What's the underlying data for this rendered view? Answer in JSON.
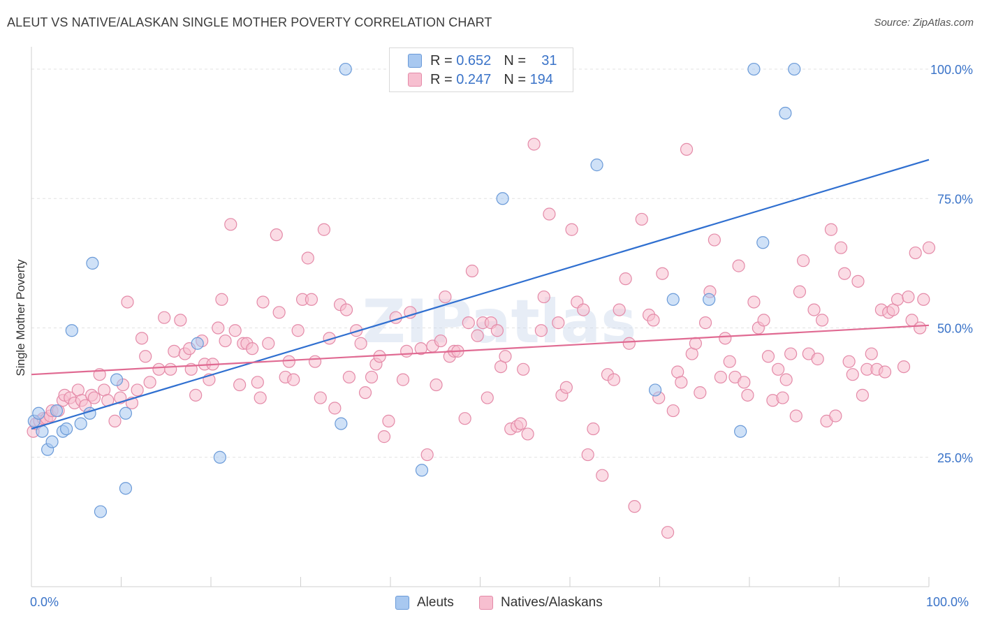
{
  "title": "ALEUT VS NATIVE/ALASKAN SINGLE MOTHER POVERTY CORRELATION CHART",
  "source": "Source: ZipAtlas.com",
  "watermark": "ZIPatlas",
  "legend": {
    "rows": [
      {
        "r_label": "R =",
        "r_value": "0.652",
        "n_label": "N =",
        "n_value": "31",
        "color": "#a8c8f0",
        "border": "#6a9ad8"
      },
      {
        "r_label": "R =",
        "r_value": "0.247",
        "n_label": "N =",
        "n_value": "194",
        "color": "#f7bfd0",
        "border": "#e48aa8"
      }
    ]
  },
  "bottom_legend": [
    {
      "label": "Aleuts",
      "color": "#a8c8f0",
      "border": "#6a9ad8"
    },
    {
      "label": "Natives/Alaskans",
      "color": "#f7bfd0",
      "border": "#e48aa8"
    }
  ],
  "chart_data": {
    "type": "scatter",
    "xlabel": "",
    "ylabel": "Single Mother Poverty",
    "xlim": [
      0,
      100
    ],
    "ylim": [
      0,
      105
    ],
    "x_tick_labels": [
      "0.0%",
      "100.0%"
    ],
    "y_ticks": [
      25,
      50,
      75,
      100
    ],
    "y_tick_labels": [
      "25.0%",
      "50.0%",
      "75.0%",
      "100.0%"
    ],
    "grid": true,
    "legend_position": "top-center",
    "series": [
      {
        "name": "Aleuts",
        "color": "#a8c8f0",
        "edge": "#6a9ad8",
        "trend_color": "#2f6fd0",
        "trend": [
          [
            0,
            30.5
          ],
          [
            100,
            82.5
          ]
        ],
        "points": [
          [
            0.3,
            32
          ],
          [
            0.8,
            33.5
          ],
          [
            1.2,
            30
          ],
          [
            1.8,
            26.5
          ],
          [
            2.3,
            28
          ],
          [
            2.8,
            34
          ],
          [
            3.5,
            30
          ],
          [
            3.9,
            30.5
          ],
          [
            5.5,
            31.5
          ],
          [
            6.5,
            33.5
          ],
          [
            4.5,
            49.5
          ],
          [
            6.8,
            62.5
          ],
          [
            7.7,
            14.5
          ],
          [
            9.5,
            40
          ],
          [
            10.5,
            33.5
          ],
          [
            10.5,
            19
          ],
          [
            18.5,
            47
          ],
          [
            21,
            25
          ],
          [
            34.5,
            31.5
          ],
          [
            35,
            100
          ],
          [
            43.5,
            22.5
          ],
          [
            52.5,
            75
          ],
          [
            63,
            81.5
          ],
          [
            69.5,
            38
          ],
          [
            71.5,
            55.5
          ],
          [
            75.5,
            55.5
          ],
          [
            79,
            30
          ],
          [
            80.5,
            100
          ],
          [
            81.5,
            66.5
          ],
          [
            84,
            91.5
          ],
          [
            85,
            100
          ]
        ]
      },
      {
        "name": "Natives/Alaskans",
        "color": "#f7bfd0",
        "edge": "#e48aa8",
        "trend_color": "#e06a92",
        "trend": [
          [
            0,
            41
          ],
          [
            100,
            50.5
          ]
        ],
        "points": [
          [
            0.2,
            30
          ],
          [
            0.5,
            31.5
          ],
          [
            0.9,
            32
          ],
          [
            1.3,
            32.5
          ],
          [
            1.7,
            32.5
          ],
          [
            2.1,
            33
          ],
          [
            2.3,
            34
          ],
          [
            3,
            34
          ],
          [
            3.5,
            36
          ],
          [
            3.7,
            37
          ],
          [
            4.3,
            36.5
          ],
          [
            4.8,
            35.5
          ],
          [
            5.2,
            38
          ],
          [
            5.6,
            36
          ],
          [
            6,
            35
          ],
          [
            6.7,
            37
          ],
          [
            7,
            36.5
          ],
          [
            7.6,
            41
          ],
          [
            8.1,
            38
          ],
          [
            8.5,
            36
          ],
          [
            9.3,
            32
          ],
          [
            9.9,
            36.5
          ],
          [
            10.2,
            39
          ],
          [
            10.7,
            55
          ],
          [
            11.2,
            35.5
          ],
          [
            11.8,
            38
          ],
          [
            12.3,
            48
          ],
          [
            12.7,
            44.5
          ],
          [
            13.2,
            39.5
          ],
          [
            14.2,
            42
          ],
          [
            14.8,
            52
          ],
          [
            15.5,
            42
          ],
          [
            15.9,
            45.5
          ],
          [
            16.6,
            51.5
          ],
          [
            17.1,
            45
          ],
          [
            17.6,
            46
          ],
          [
            17.8,
            42
          ],
          [
            18.3,
            37
          ],
          [
            19,
            47.5
          ],
          [
            19.3,
            43
          ],
          [
            19.8,
            40
          ],
          [
            20.2,
            43
          ],
          [
            20.8,
            50
          ],
          [
            21.2,
            55.5
          ],
          [
            21.6,
            47.5
          ],
          [
            22.2,
            70
          ],
          [
            22.7,
            49.5
          ],
          [
            23.2,
            39
          ],
          [
            23.6,
            47
          ],
          [
            24,
            47
          ],
          [
            24.6,
            46
          ],
          [
            25.2,
            39.5
          ],
          [
            25.5,
            36.5
          ],
          [
            25.8,
            55
          ],
          [
            26.4,
            47
          ],
          [
            27.3,
            68
          ],
          [
            27.6,
            53
          ],
          [
            28.3,
            40.5
          ],
          [
            28.7,
            43.5
          ],
          [
            29.2,
            40
          ],
          [
            29.7,
            49.5
          ],
          [
            30.2,
            55.5
          ],
          [
            30.8,
            63.5
          ],
          [
            31.2,
            55.5
          ],
          [
            31.6,
            43.5
          ],
          [
            32.2,
            36.5
          ],
          [
            32.6,
            69
          ],
          [
            33.2,
            48
          ],
          [
            33.8,
            34.5
          ],
          [
            34.4,
            54.5
          ],
          [
            35.1,
            53.5
          ],
          [
            35.4,
            40.5
          ],
          [
            36.2,
            49.5
          ],
          [
            36.7,
            47
          ],
          [
            37.2,
            37.5
          ],
          [
            37.9,
            40.5
          ],
          [
            38.4,
            43
          ],
          [
            38.8,
            44.5
          ],
          [
            39.3,
            29
          ],
          [
            39.8,
            32
          ],
          [
            40.6,
            52
          ],
          [
            41.4,
            40
          ],
          [
            41.8,
            45.5
          ],
          [
            42.2,
            53
          ],
          [
            43.4,
            46
          ],
          [
            44.1,
            25.5
          ],
          [
            44.7,
            46.5
          ],
          [
            45.1,
            39
          ],
          [
            45.6,
            47.5
          ],
          [
            46.1,
            56
          ],
          [
            46.6,
            44.5
          ],
          [
            47.1,
            45.5
          ],
          [
            47.5,
            45.5
          ],
          [
            48.3,
            32.5
          ],
          [
            48.7,
            51
          ],
          [
            49.1,
            61
          ],
          [
            49.7,
            48.5
          ],
          [
            50.3,
            51
          ],
          [
            50.8,
            36.5
          ],
          [
            51.2,
            51
          ],
          [
            51.9,
            49.5
          ],
          [
            52.3,
            42.5
          ],
          [
            52.8,
            44.5
          ],
          [
            53.4,
            30.5
          ],
          [
            54.1,
            31
          ],
          [
            54.5,
            31.5
          ],
          [
            54.8,
            42
          ],
          [
            55.3,
            29.5
          ],
          [
            56,
            85.5
          ],
          [
            56.8,
            49.5
          ],
          [
            57.1,
            56
          ],
          [
            57.7,
            72
          ],
          [
            58.7,
            51
          ],
          [
            59.1,
            37
          ],
          [
            59.6,
            38.5
          ],
          [
            60.2,
            69
          ],
          [
            60.8,
            55
          ],
          [
            61.5,
            53.5
          ],
          [
            62,
            25.5
          ],
          [
            62.6,
            30.5
          ],
          [
            63.6,
            21.5
          ],
          [
            64.2,
            41
          ],
          [
            64.9,
            40
          ],
          [
            65.5,
            53.5
          ],
          [
            66.2,
            59.5
          ],
          [
            66.6,
            47
          ],
          [
            67.2,
            15.5
          ],
          [
            68,
            71
          ],
          [
            68.8,
            52.5
          ],
          [
            69.3,
            51.5
          ],
          [
            69.9,
            36.5
          ],
          [
            70.3,
            60.5
          ],
          [
            70.9,
            10.5
          ],
          [
            71.5,
            34
          ],
          [
            72,
            41.5
          ],
          [
            72.4,
            39.5
          ],
          [
            73,
            84.5
          ],
          [
            73.6,
            45
          ],
          [
            74,
            47
          ],
          [
            74.5,
            37.5
          ],
          [
            75.1,
            51
          ],
          [
            75.6,
            57
          ],
          [
            76.1,
            67
          ],
          [
            76.8,
            40.5
          ],
          [
            77.3,
            48
          ],
          [
            77.8,
            43.5
          ],
          [
            78.4,
            40.5
          ],
          [
            78.8,
            62
          ],
          [
            79.4,
            39.5
          ],
          [
            79.8,
            37
          ],
          [
            80.5,
            55
          ],
          [
            81,
            50
          ],
          [
            81.6,
            51.5
          ],
          [
            82.1,
            44.5
          ],
          [
            82.6,
            36
          ],
          [
            83.2,
            42
          ],
          [
            83.7,
            36.5
          ],
          [
            84.1,
            40
          ],
          [
            84.6,
            45
          ],
          [
            85.2,
            33
          ],
          [
            85.6,
            57
          ],
          [
            86,
            63
          ],
          [
            86.6,
            45
          ],
          [
            87.2,
            53.5
          ],
          [
            87.6,
            44
          ],
          [
            88.1,
            51.5
          ],
          [
            88.6,
            32
          ],
          [
            89.1,
            69
          ],
          [
            89.6,
            33
          ],
          [
            90.2,
            65.5
          ],
          [
            90.6,
            60.5
          ],
          [
            91.1,
            43.5
          ],
          [
            91.5,
            41
          ],
          [
            92.1,
            59
          ],
          [
            92.6,
            37
          ],
          [
            93.1,
            42
          ],
          [
            93.6,
            45
          ],
          [
            94.2,
            42
          ],
          [
            94.7,
            53.5
          ],
          [
            95.1,
            41.5
          ],
          [
            95.5,
            53
          ],
          [
            96,
            53.5
          ],
          [
            96.5,
            55.5
          ],
          [
            97.2,
            42.5
          ],
          [
            97.7,
            56
          ],
          [
            98.1,
            51.5
          ],
          [
            98.5,
            64.5
          ],
          [
            99,
            50
          ],
          [
            99.4,
            55.5
          ],
          [
            100,
            65.5
          ]
        ]
      }
    ]
  }
}
